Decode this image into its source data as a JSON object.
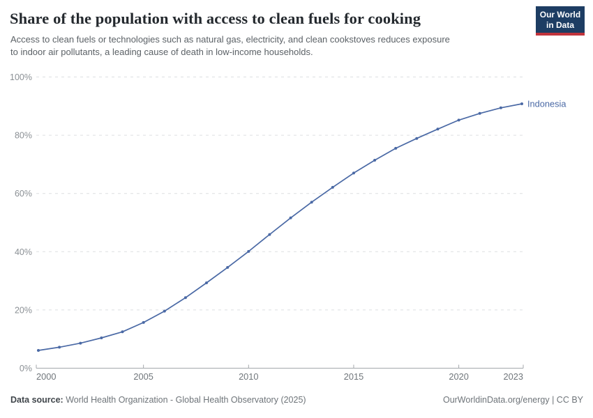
{
  "logo": {
    "line1": "Our World",
    "line2": "in Data",
    "bg_color": "#1d3d63",
    "accent_color": "#c0333c"
  },
  "chart_data": {
    "type": "line",
    "title": "Share of the population with access to clean fuels for cooking",
    "subtitle": "Access to clean fuels or technologies such as natural gas, electricity, and clean cookstoves reduces exposure to indoor air pollutants, a leading cause of death in low-income households.",
    "subtitle_lines": [
      "Access to clean fuels or technologies such as natural gas, electricity, and clean cookstoves reduces exposure",
      "to indoor air pollutants, a leading cause of death in low-income households."
    ],
    "xlabel": "",
    "ylabel": "",
    "xlim": [
      2000,
      2023
    ],
    "ylim": [
      0,
      100
    ],
    "grid": "horizontal-dashed",
    "legend_position": "end-of-line",
    "xticks": [
      2000,
      2005,
      2010,
      2015,
      2020,
      2023
    ],
    "yticks": [
      0,
      20,
      40,
      60,
      80,
      100
    ],
    "ytick_suffix": "%",
    "series": [
      {
        "name": "Indonesia",
        "color": "#4a69a5",
        "x": [
          2000,
          2001,
          2002,
          2003,
          2004,
          2005,
          2006,
          2007,
          2008,
          2009,
          2010,
          2011,
          2012,
          2013,
          2014,
          2015,
          2016,
          2017,
          2018,
          2019,
          2020,
          2021,
          2022,
          2023
        ],
        "values": [
          6.1,
          7.2,
          8.6,
          10.4,
          12.5,
          15.7,
          19.6,
          24.2,
          29.3,
          34.6,
          40.1,
          45.9,
          51.6,
          57.0,
          62.1,
          67.0,
          71.4,
          75.5,
          78.9,
          82.1,
          85.2,
          87.5,
          89.4,
          90.8
        ]
      }
    ]
  },
  "footer": {
    "datasource_label": "Data source:",
    "datasource_text": " World Health Organization - Global Health Observatory (2025)",
    "credit_link": "OurWorldinData.org/energy",
    "separator": " | ",
    "license": "CC BY"
  }
}
